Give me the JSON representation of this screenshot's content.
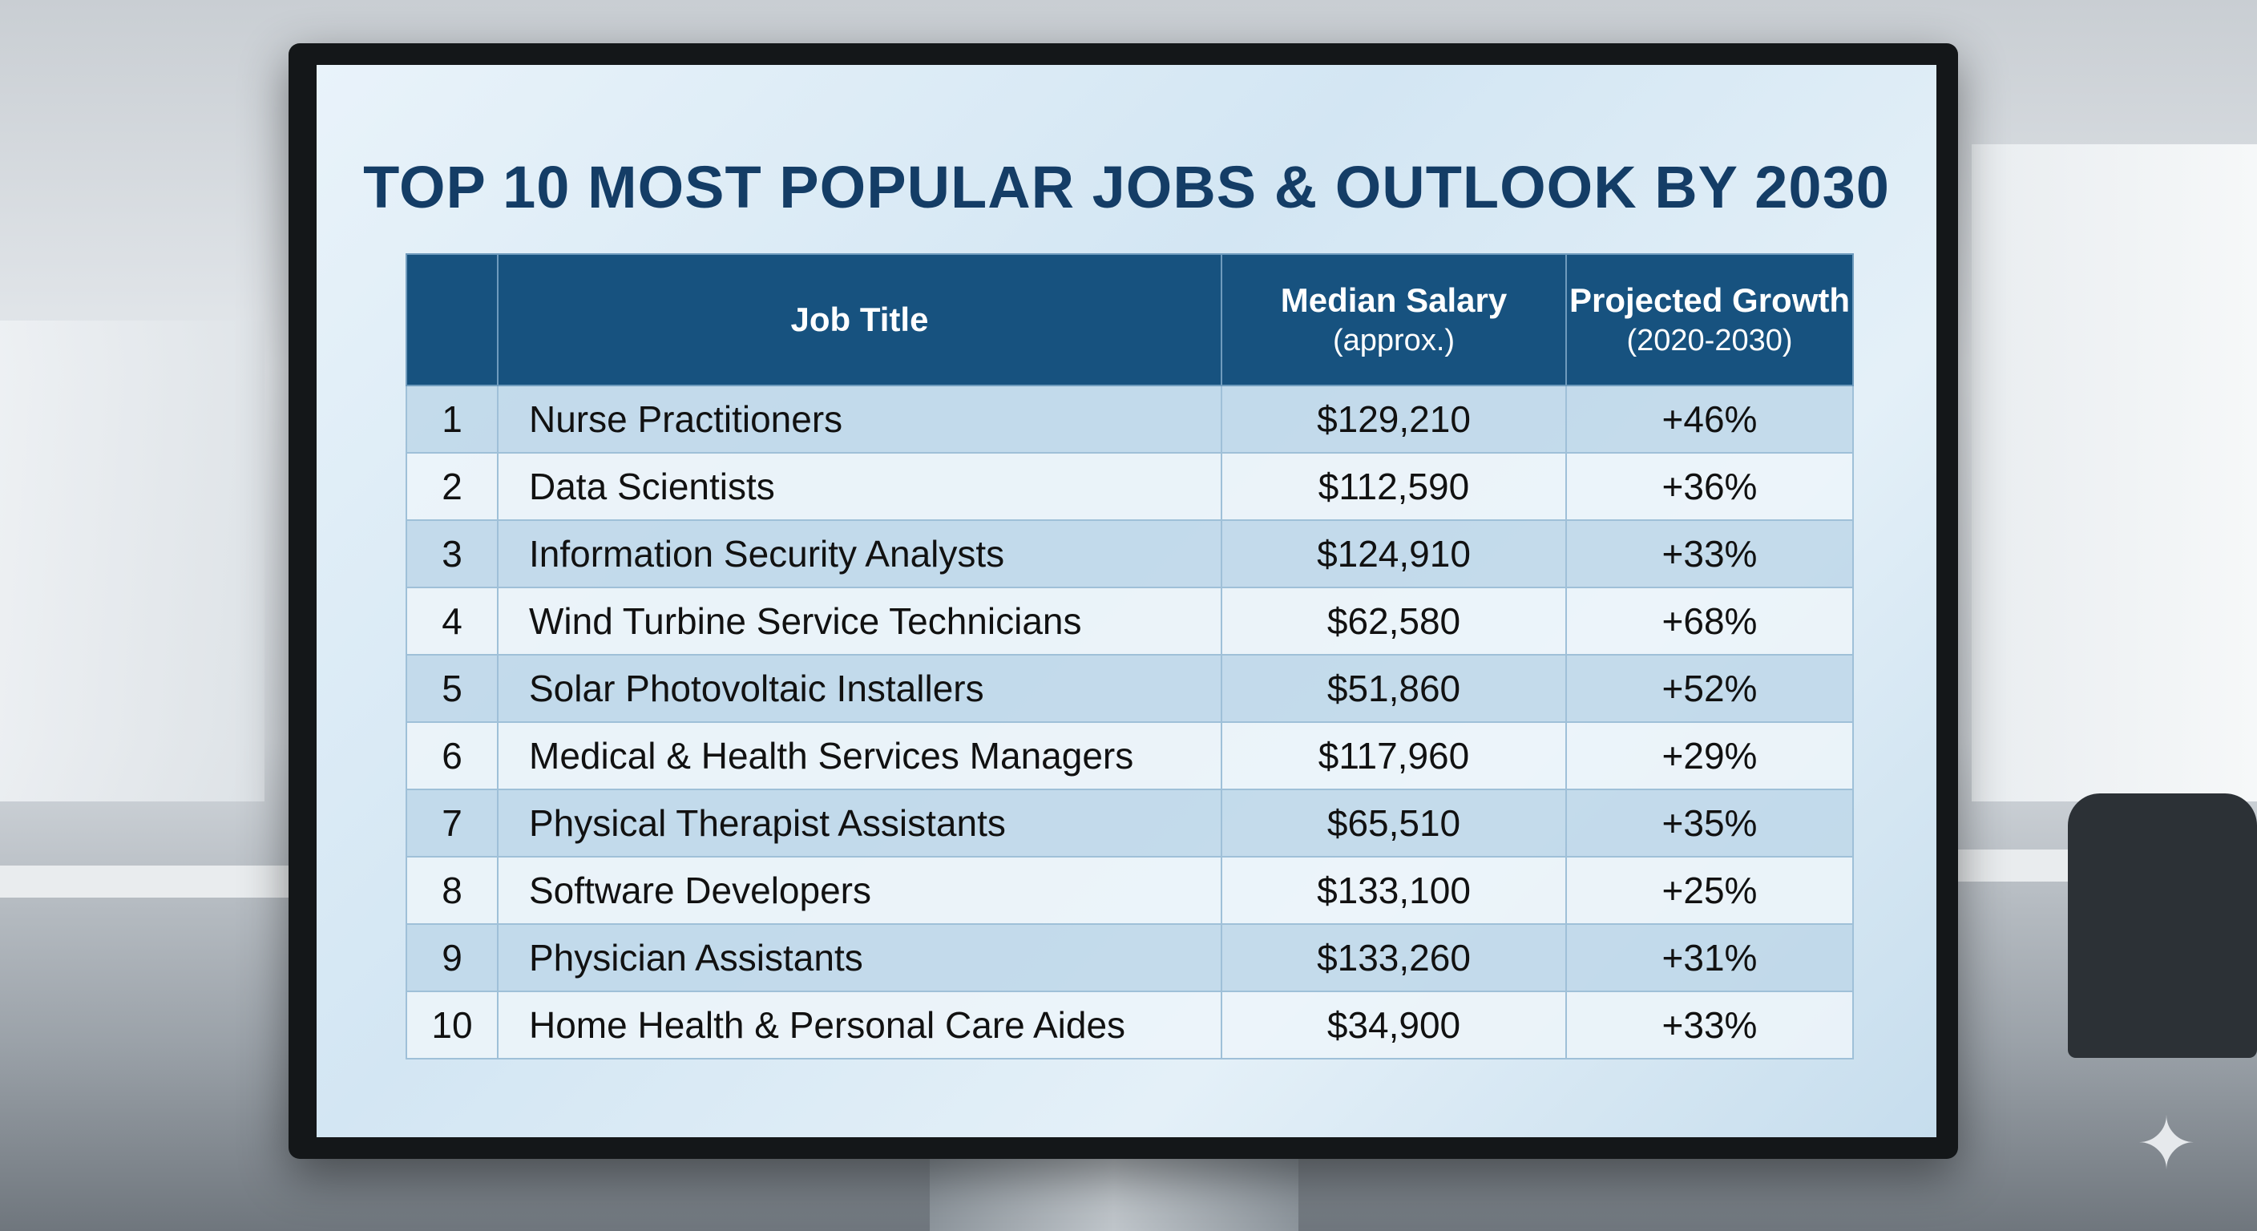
{
  "title": "TOP 10 MOST POPULAR JOBS & OUTLOOK BY 2030",
  "table": {
    "headers": {
      "rank": "",
      "job_title": "Job Title",
      "salary": "Median Salary",
      "salary_sub": "(approx.)",
      "growth": "Projected Growth",
      "growth_sub": "(2020-2030)"
    },
    "rows": [
      {
        "rank": "1",
        "job": "Nurse Practitioners",
        "salary": "$129,210",
        "growth": "+46%"
      },
      {
        "rank": "2",
        "job": "Data Scientists",
        "salary": "$112,590",
        "growth": "+36%"
      },
      {
        "rank": "3",
        "job": "Information Security Analysts",
        "salary": "$124,910",
        "growth": "+33%"
      },
      {
        "rank": "4",
        "job": "Wind Turbine Service Technicians",
        "salary": "$62,580",
        "growth": "+68%"
      },
      {
        "rank": "5",
        "job": "Solar Photovoltaic Installers",
        "salary": "$51,860",
        "growth": "+52%"
      },
      {
        "rank": "6",
        "job": "Medical & Health Services Managers",
        "salary": "$117,960",
        "growth": "+29%"
      },
      {
        "rank": "7",
        "job": "Physical Therapist Assistants",
        "salary": "$65,510",
        "growth": "+35%"
      },
      {
        "rank": "8",
        "job": "Software Developers",
        "salary": "$133,100",
        "growth": "+25%"
      },
      {
        "rank": "9",
        "job": "Physician Assistants",
        "salary": "$133,260",
        "growth": "+31%"
      },
      {
        "rank": "10",
        "job": "Home Health & Personal Care Aides",
        "salary": "$34,900",
        "growth": "+33%"
      }
    ]
  },
  "colors": {
    "header_bg": "#17527f",
    "title": "#143d66"
  }
}
